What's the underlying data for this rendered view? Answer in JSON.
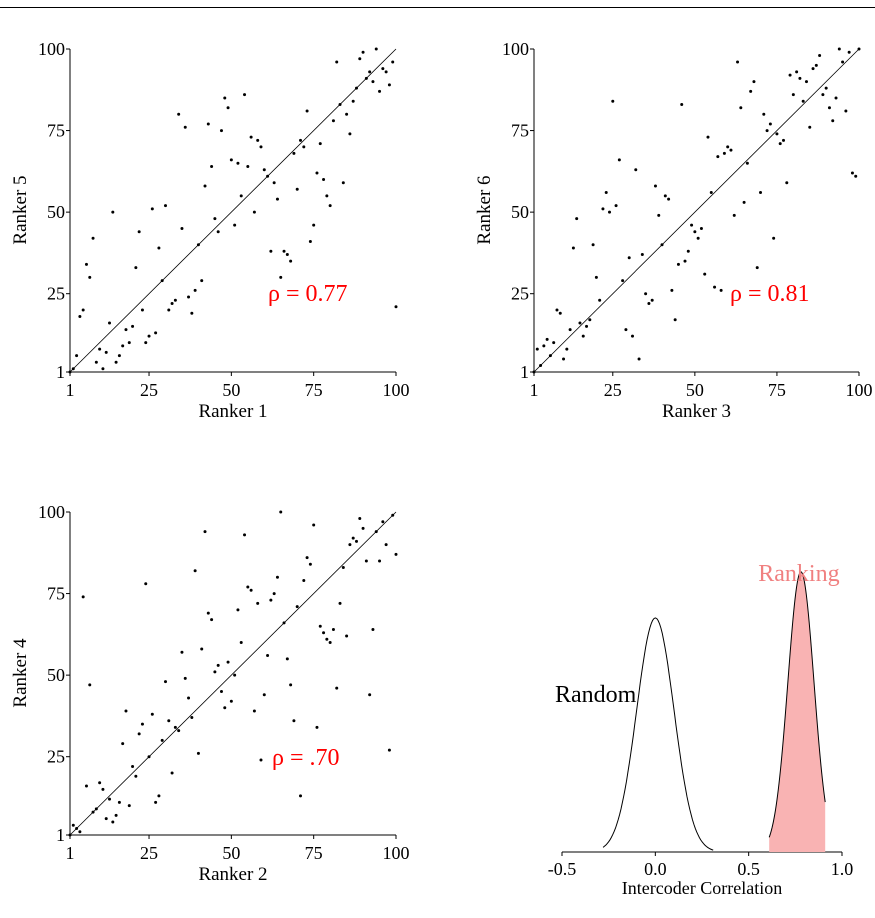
{
  "colors": {
    "ink": "#000000",
    "rho": "#ff0000",
    "ranking_label": "#f08080",
    "ranking_fill": "#f9b3b3"
  },
  "chart_data": [
    {
      "type": "scatter",
      "xlabel": "Ranker 1",
      "ylabel": "Ranker 5",
      "xlim": [
        1,
        100
      ],
      "ylim": [
        1,
        100
      ],
      "ticks": [
        "1",
        "25",
        "50",
        "75",
        "100"
      ],
      "annotation": "ρ = 0.77",
      "reference_line": "y = x",
      "points": [
        [
          1,
          1
        ],
        [
          2,
          2
        ],
        [
          3,
          6
        ],
        [
          4,
          18
        ],
        [
          5,
          20
        ],
        [
          6,
          34
        ],
        [
          7,
          30
        ],
        [
          8,
          42
        ],
        [
          9,
          4
        ],
        [
          10,
          8
        ],
        [
          11,
          2
        ],
        [
          12,
          7
        ],
        [
          13,
          16
        ],
        [
          14,
          50
        ],
        [
          15,
          4
        ],
        [
          16,
          6
        ],
        [
          17,
          9
        ],
        [
          18,
          14
        ],
        [
          19,
          10
        ],
        [
          20,
          15
        ],
        [
          21,
          33
        ],
        [
          22,
          44
        ],
        [
          23,
          20
        ],
        [
          24,
          10
        ],
        [
          25,
          12
        ],
        [
          26,
          51
        ],
        [
          27,
          13
        ],
        [
          28,
          39
        ],
        [
          29,
          29
        ],
        [
          30,
          52
        ],
        [
          31,
          20
        ],
        [
          32,
          22
        ],
        [
          33,
          23
        ],
        [
          34,
          80
        ],
        [
          35,
          45
        ],
        [
          36,
          76
        ],
        [
          37,
          24
        ],
        [
          38,
          19
        ],
        [
          39,
          26
        ],
        [
          40,
          40
        ],
        [
          41,
          29
        ],
        [
          42,
          58
        ],
        [
          43,
          77
        ],
        [
          44,
          64
        ],
        [
          45,
          48
        ],
        [
          46,
          44
        ],
        [
          47,
          75
        ],
        [
          48,
          85
        ],
        [
          49,
          82
        ],
        [
          50,
          66
        ],
        [
          51,
          46
        ],
        [
          52,
          65
        ],
        [
          53,
          55
        ],
        [
          54,
          86
        ],
        [
          55,
          64
        ],
        [
          56,
          73
        ],
        [
          57,
          50
        ],
        [
          58,
          72
        ],
        [
          59,
          70
        ],
        [
          60,
          63
        ],
        [
          61,
          61
        ],
        [
          62,
          38
        ],
        [
          63,
          59
        ],
        [
          64,
          54
        ],
        [
          65,
          30
        ],
        [
          66,
          38
        ],
        [
          67,
          37
        ],
        [
          68,
          35
        ],
        [
          69,
          68
        ],
        [
          70,
          57
        ],
        [
          71,
          72
        ],
        [
          72,
          70
        ],
        [
          73,
          81
        ],
        [
          74,
          41
        ],
        [
          75,
          46
        ],
        [
          76,
          62
        ],
        [
          77,
          71
        ],
        [
          78,
          60
        ],
        [
          79,
          55
        ],
        [
          80,
          52
        ],
        [
          81,
          78
        ],
        [
          82,
          96
        ],
        [
          83,
          83
        ],
        [
          84,
          59
        ],
        [
          85,
          80
        ],
        [
          86,
          74
        ],
        [
          87,
          84
        ],
        [
          88,
          88
        ],
        [
          89,
          97
        ],
        [
          90,
          99
        ],
        [
          91,
          91
        ],
        [
          92,
          93
        ],
        [
          93,
          90
        ],
        [
          94,
          100
        ],
        [
          95,
          87
        ],
        [
          96,
          94
        ],
        [
          97,
          93
        ],
        [
          98,
          89
        ],
        [
          99,
          96
        ],
        [
          100,
          21
        ]
      ]
    },
    {
      "type": "scatter",
      "xlabel": "Ranker 3",
      "ylabel": "Ranker 6",
      "xlim": [
        1,
        100
      ],
      "ylim": [
        1,
        100
      ],
      "ticks": [
        "1",
        "25",
        "50",
        "75",
        "100"
      ],
      "annotation": "ρ = 0.81",
      "reference_line": "y = x",
      "points": [
        [
          1,
          1
        ],
        [
          2,
          8
        ],
        [
          3,
          3
        ],
        [
          4,
          9
        ],
        [
          5,
          11
        ],
        [
          6,
          6
        ],
        [
          7,
          10
        ],
        [
          8,
          20
        ],
        [
          9,
          19
        ],
        [
          10,
          5
        ],
        [
          11,
          8
        ],
        [
          12,
          14
        ],
        [
          13,
          39
        ],
        [
          14,
          48
        ],
        [
          15,
          16
        ],
        [
          16,
          12
        ],
        [
          17,
          15
        ],
        [
          18,
          17
        ],
        [
          19,
          40
        ],
        [
          20,
          30
        ],
        [
          21,
          23
        ],
        [
          22,
          51
        ],
        [
          23,
          56
        ],
        [
          24,
          50
        ],
        [
          25,
          84
        ],
        [
          26,
          52
        ],
        [
          27,
          66
        ],
        [
          28,
          29
        ],
        [
          29,
          14
        ],
        [
          30,
          36
        ],
        [
          31,
          12
        ],
        [
          32,
          63
        ],
        [
          33,
          5
        ],
        [
          34,
          37
        ],
        [
          35,
          25
        ],
        [
          36,
          22
        ],
        [
          37,
          23
        ],
        [
          38,
          58
        ],
        [
          39,
          49
        ],
        [
          40,
          40
        ],
        [
          41,
          55
        ],
        [
          42,
          54
        ],
        [
          43,
          26
        ],
        [
          44,
          17
        ],
        [
          45,
          34
        ],
        [
          46,
          83
        ],
        [
          47,
          35
        ],
        [
          48,
          38
        ],
        [
          49,
          46
        ],
        [
          50,
          44
        ],
        [
          51,
          42
        ],
        [
          52,
          45
        ],
        [
          53,
          31
        ],
        [
          54,
          73
        ],
        [
          55,
          56
        ],
        [
          56,
          27
        ],
        [
          57,
          67
        ],
        [
          58,
          26
        ],
        [
          59,
          68
        ],
        [
          60,
          70
        ],
        [
          61,
          69
        ],
        [
          62,
          49
        ],
        [
          63,
          96
        ],
        [
          64,
          82
        ],
        [
          65,
          53
        ],
        [
          66,
          65
        ],
        [
          67,
          87
        ],
        [
          68,
          90
        ],
        [
          69,
          33
        ],
        [
          70,
          56
        ],
        [
          71,
          80
        ],
        [
          72,
          75
        ],
        [
          73,
          77
        ],
        [
          74,
          42
        ],
        [
          75,
          74
        ],
        [
          76,
          71
        ],
        [
          77,
          72
        ],
        [
          78,
          59
        ],
        [
          79,
          92
        ],
        [
          80,
          86
        ],
        [
          81,
          93
        ],
        [
          82,
          91
        ],
        [
          83,
          84
        ],
        [
          84,
          90
        ],
        [
          85,
          76
        ],
        [
          86,
          94
        ],
        [
          87,
          95
        ],
        [
          88,
          98
        ],
        [
          89,
          86
        ],
        [
          90,
          88
        ],
        [
          91,
          82
        ],
        [
          92,
          78
        ],
        [
          93,
          85
        ],
        [
          94,
          100
        ],
        [
          95,
          96
        ],
        [
          96,
          81
        ],
        [
          97,
          99
        ],
        [
          98,
          62
        ],
        [
          99,
          61
        ],
        [
          100,
          100
        ]
      ]
    },
    {
      "type": "scatter",
      "xlabel": "Ranker 2",
      "ylabel": "Ranker 4",
      "xlim": [
        1,
        100
      ],
      "ylim": [
        1,
        100
      ],
      "ticks": [
        "1",
        "25",
        "50",
        "75",
        "100"
      ],
      "annotation": "ρ = .70",
      "reference_line": "y = x",
      "points": [
        [
          1,
          1
        ],
        [
          2,
          4
        ],
        [
          3,
          3
        ],
        [
          4,
          2
        ],
        [
          5,
          74
        ],
        [
          6,
          16
        ],
        [
          7,
          47
        ],
        [
          8,
          8
        ],
        [
          9,
          9
        ],
        [
          10,
          17
        ],
        [
          11,
          15
        ],
        [
          12,
          6
        ],
        [
          13,
          12
        ],
        [
          14,
          5
        ],
        [
          15,
          7
        ],
        [
          16,
          11
        ],
        [
          17,
          29
        ],
        [
          18,
          39
        ],
        [
          19,
          10
        ],
        [
          20,
          22
        ],
        [
          21,
          19
        ],
        [
          22,
          32
        ],
        [
          23,
          35
        ],
        [
          24,
          78
        ],
        [
          25,
          25
        ],
        [
          26,
          38
        ],
        [
          27,
          11
        ],
        [
          28,
          13
        ],
        [
          29,
          30
        ],
        [
          30,
          48
        ],
        [
          31,
          36
        ],
        [
          32,
          20
        ],
        [
          33,
          34
        ],
        [
          34,
          33
        ],
        [
          35,
          57
        ],
        [
          36,
          49
        ],
        [
          37,
          43
        ],
        [
          38,
          37
        ],
        [
          39,
          82
        ],
        [
          40,
          26
        ],
        [
          41,
          58
        ],
        [
          42,
          94
        ],
        [
          43,
          69
        ],
        [
          44,
          67
        ],
        [
          45,
          51
        ],
        [
          46,
          53
        ],
        [
          47,
          45
        ],
        [
          48,
          40
        ],
        [
          49,
          54
        ],
        [
          50,
          42
        ],
        [
          51,
          50
        ],
        [
          52,
          70
        ],
        [
          53,
          60
        ],
        [
          54,
          93
        ],
        [
          55,
          77
        ],
        [
          56,
          76
        ],
        [
          57,
          39
        ],
        [
          58,
          72
        ],
        [
          59,
          24
        ],
        [
          60,
          44
        ],
        [
          61,
          56
        ],
        [
          62,
          73
        ],
        [
          63,
          75
        ],
        [
          64,
          80
        ],
        [
          65,
          100
        ],
        [
          66,
          66
        ],
        [
          67,
          55
        ],
        [
          68,
          47
        ],
        [
          69,
          36
        ],
        [
          70,
          71
        ],
        [
          71,
          13
        ],
        [
          72,
          79
        ],
        [
          73,
          86
        ],
        [
          74,
          84
        ],
        [
          75,
          96
        ],
        [
          76,
          34
        ],
        [
          77,
          65
        ],
        [
          78,
          63
        ],
        [
          79,
          61
        ],
        [
          80,
          60
        ],
        [
          81,
          64
        ],
        [
          82,
          46
        ],
        [
          83,
          72
        ],
        [
          84,
          83
        ],
        [
          85,
          62
        ],
        [
          86,
          90
        ],
        [
          87,
          92
        ],
        [
          88,
          91
        ],
        [
          89,
          98
        ],
        [
          90,
          95
        ],
        [
          91,
          85
        ],
        [
          92,
          44
        ],
        [
          93,
          64
        ],
        [
          94,
          94
        ],
        [
          95,
          85
        ],
        [
          96,
          97
        ],
        [
          97,
          90
        ],
        [
          98,
          27
        ],
        [
          99,
          99
        ],
        [
          100,
          87
        ]
      ]
    },
    {
      "type": "area",
      "xlabel": "Intercoder Correlation",
      "xlim": [
        -0.5,
        1.0
      ],
      "ticks": [
        "-0.5",
        "0.0",
        "0.5",
        "1.0"
      ],
      "series": [
        {
          "name": "Random",
          "mean": 0.0,
          "sd": 0.1,
          "peak": 0.61,
          "range": [
            -0.28,
            0.31
          ],
          "filled": false
        },
        {
          "name": "Ranking",
          "mean": 0.78,
          "sd": 0.07,
          "peak": 0.73,
          "range": [
            0.61,
            0.91
          ],
          "filled": true
        }
      ]
    }
  ]
}
